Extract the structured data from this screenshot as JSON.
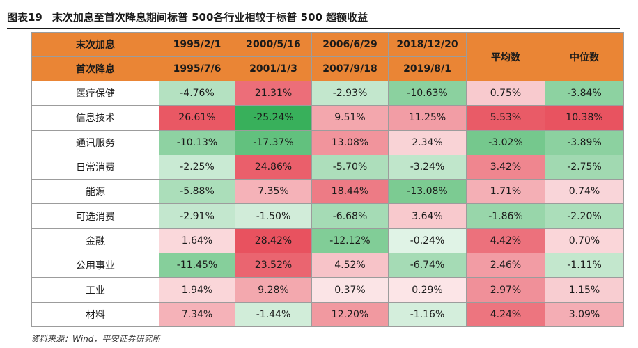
{
  "title": {
    "figure_label": "图表19",
    "text": "末次加息至首次降息期间标普 500各行业相较于标普 500 超额收益"
  },
  "table": {
    "header_row1_label": "末次加息",
    "header_row2_label": "首次降息",
    "periods": [
      {
        "last_hike": "1995/2/1",
        "first_cut": "1995/7/6"
      },
      {
        "last_hike": "2000/5/16",
        "first_cut": "2001/1/3"
      },
      {
        "last_hike": "2006/6/29",
        "first_cut": "2007/9/18"
      },
      {
        "last_hike": "2018/12/20",
        "first_cut": "2019/8/1"
      }
    ],
    "avg_label": "平均数",
    "median_label": "中位数",
    "rows": [
      {
        "sector": "医疗保健",
        "values": [
          "-4.76%",
          "21.31%",
          "-2.93%",
          "-10.63%"
        ],
        "avg": "0.75%",
        "median": "-3.84%"
      },
      {
        "sector": "信息技术",
        "values": [
          "26.61%",
          "-25.24%",
          "9.51%",
          "11.25%"
        ],
        "avg": "5.53%",
        "median": "10.38%"
      },
      {
        "sector": "通讯服务",
        "values": [
          "-10.13%",
          "-17.37%",
          "13.08%",
          "2.34%"
        ],
        "avg": "-3.02%",
        "median": "-3.89%"
      },
      {
        "sector": "日常消费",
        "values": [
          "-2.25%",
          "24.86%",
          "-5.70%",
          "-3.24%"
        ],
        "avg": "3.42%",
        "median": "-2.75%"
      },
      {
        "sector": "能源",
        "values": [
          "-5.88%",
          "7.35%",
          "18.44%",
          "-13.08%"
        ],
        "avg": "1.71%",
        "median": "0.74%"
      },
      {
        "sector": "可选消费",
        "values": [
          "-2.91%",
          "-1.50%",
          "-6.68%",
          "3.64%"
        ],
        "avg": "-1.86%",
        "median": "-2.20%"
      },
      {
        "sector": "金融",
        "values": [
          "1.64%",
          "28.42%",
          "-12.12%",
          "-0.24%"
        ],
        "avg": "4.42%",
        "median": "0.70%"
      },
      {
        "sector": "公用事业",
        "values": [
          "-11.45%",
          "23.52%",
          "4.52%",
          "-6.74%"
        ],
        "avg": "2.46%",
        "median": "-1.11%"
      },
      {
        "sector": "工业",
        "values": [
          "1.94%",
          "9.28%",
          "0.37%",
          "0.29%"
        ],
        "avg": "2.97%",
        "median": "1.15%"
      },
      {
        "sector": "材料",
        "values": [
          "7.34%",
          "-1.44%",
          "12.20%",
          "-1.16%"
        ],
        "avg": "4.24%",
        "median": "3.09%"
      }
    ]
  },
  "colors": {
    "header_orange": "#ea8535",
    "positive_red": "#e8525f",
    "negative_green": "#2aaa4f",
    "neutral": "#ffffff"
  },
  "footer": {
    "source": "资料来源：Wind，平安证券研究所"
  }
}
